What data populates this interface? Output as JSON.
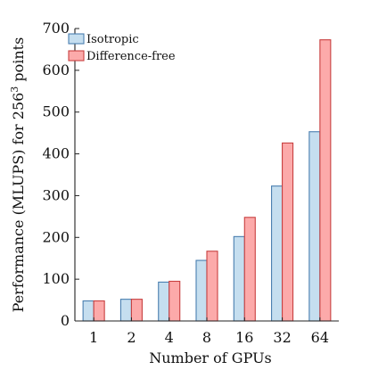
{
  "chart_data": {
    "type": "bar",
    "categories": [
      "1",
      "2",
      "4",
      "8",
      "16",
      "32",
      "64"
    ],
    "series": [
      {
        "name": "Isotropic",
        "values": [
          48,
          52,
          93,
          145,
          202,
          323,
          453
        ],
        "fill": "#c5deef",
        "stroke": "#4a7fb0"
      },
      {
        "name": "Difference-free",
        "values": [
          48,
          52,
          95,
          167,
          248,
          426,
          673
        ],
        "fill": "#fcaaaa",
        "stroke": "#c84040"
      }
    ],
    "xlabel": "Number of GPUs",
    "ylabel_prefix": "Performance (MLUPS) for 256",
    "ylabel_sup": "3",
    "ylabel_suffix": " points",
    "ylim": [
      0,
      700
    ],
    "yticks": [
      0,
      100,
      200,
      300,
      400,
      500,
      600,
      700
    ],
    "grid": false,
    "legend_position": "top-left"
  }
}
